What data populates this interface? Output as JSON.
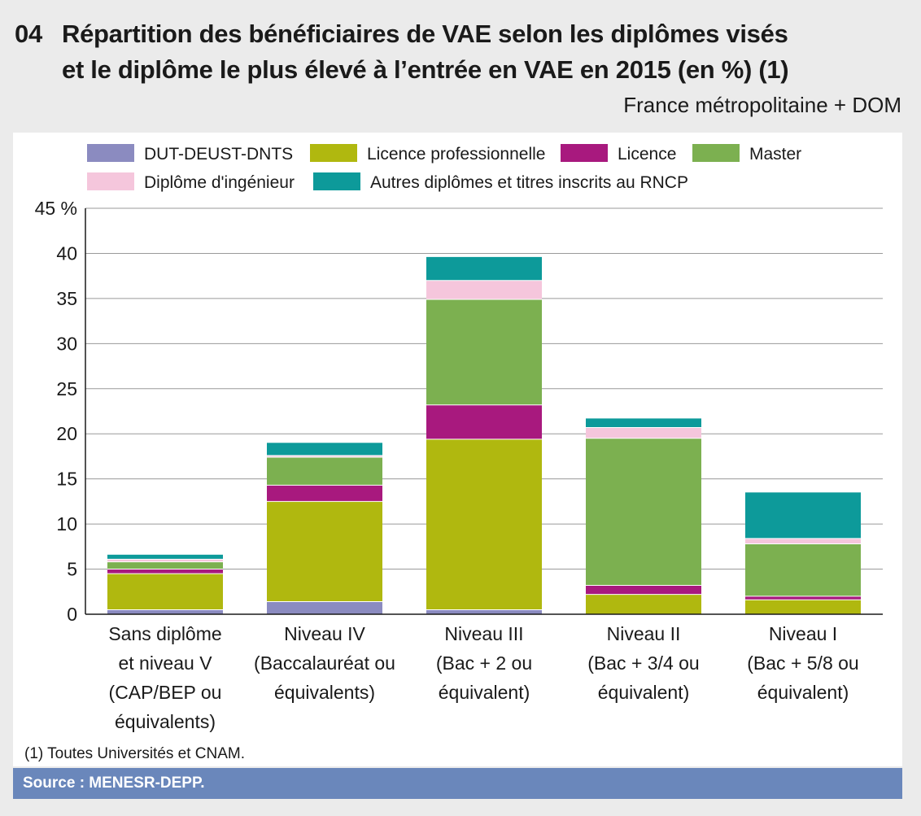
{
  "header": {
    "number": "04",
    "title_line1": "Répartition des bénéficiaires de VAE selon les diplômes visés",
    "title_line2": "et le diplôme le plus élevé à l’entrée en VAE en 2015 (en %) (1)",
    "subtitle": "France métropolitaine + DOM"
  },
  "footnote": "(1) Toutes Universités et CNAM.",
  "source": "Source : MENESR-DEPP.",
  "chart_data": {
    "type": "bar",
    "stacked": true,
    "title": "Répartition des bénéficiaires de VAE selon les diplômes visés et le diplôme le plus élevé à l’entrée en VAE en 2015 (en %) (1)",
    "xlabel": "",
    "ylabel": "",
    "ylim": [
      0,
      45
    ],
    "yticks": [
      0,
      5,
      10,
      15,
      20,
      25,
      30,
      35,
      40,
      45
    ],
    "ytick_labels": [
      "0",
      "5",
      "10",
      "15",
      "20",
      "25",
      "30",
      "35",
      "40",
      "45 %"
    ],
    "grid": true,
    "legend_position": "top",
    "categories": [
      [
        "Sans diplôme",
        "et niveau V",
        "(CAP/BEP ou",
        "équivalents)"
      ],
      [
        "Niveau IV",
        "(Baccalauréat ou",
        "équivalents)"
      ],
      [
        "Niveau III",
        "(Bac + 2 ou",
        "équivalent)"
      ],
      [
        "Niveau II",
        "(Bac + 3/4 ou",
        "équivalent)"
      ],
      [
        "Niveau I",
        "(Bac + 5/8 ou",
        "équivalent)"
      ]
    ],
    "series": [
      {
        "name": "DUT-DEUST-DNTS",
        "color": "#8b8bc0",
        "values": [
          0.5,
          1.4,
          0.5,
          0.0,
          0.0
        ]
      },
      {
        "name": "Licence professionnelle",
        "color": "#b0b80f",
        "values": [
          4.0,
          11.1,
          18.9,
          2.2,
          1.6
        ]
      },
      {
        "name": "Licence",
        "color": "#a8197e",
        "values": [
          0.5,
          1.8,
          3.8,
          1.0,
          0.4
        ]
      },
      {
        "name": "Master",
        "color": "#7cb050",
        "values": [
          0.8,
          3.1,
          11.7,
          16.3,
          5.8
        ]
      },
      {
        "name": "Diplôme d'ingénieur",
        "color": "#f5c6dc",
        "values": [
          0.3,
          0.2,
          2.1,
          1.2,
          0.6
        ]
      },
      {
        "name": "Autres diplômes et titres inscrits au RNCP",
        "color": "#0d9a9a",
        "values": [
          0.5,
          1.4,
          2.6,
          1.0,
          5.1
        ]
      }
    ]
  }
}
